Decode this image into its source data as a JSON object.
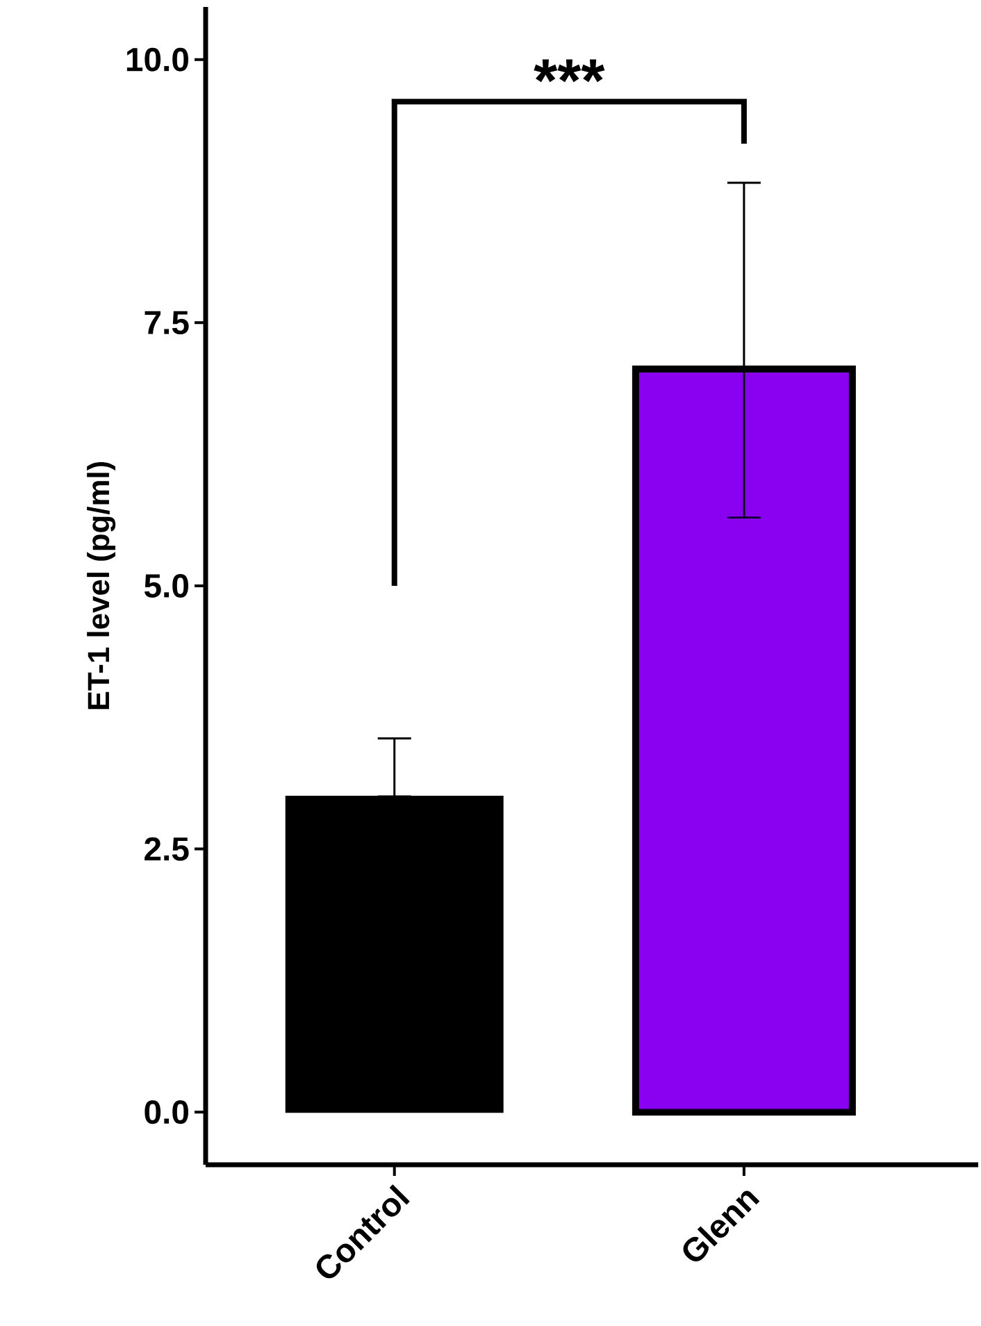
{
  "chart_data": {
    "type": "bar",
    "ylabel": "ET-1 level (pg/ml)",
    "categories": [
      "Control",
      "Glenn"
    ],
    "values": [
      3.0,
      7.06
    ],
    "colors": [
      "#000000",
      "#8a00f0"
    ],
    "errors": [
      [
        3.0,
        3.55
      ],
      [
        5.65,
        8.83
      ]
    ],
    "ylim": [
      -0.5,
      10.5
    ],
    "yticks": [
      {
        "value": 0,
        "label": "0.0"
      },
      {
        "value": 2.5,
        "label": "2.5"
      },
      {
        "value": 5,
        "label": "5.0"
      },
      {
        "value": 7.5,
        "label": "7.5"
      },
      {
        "value": 10,
        "label": "10.0"
      }
    ],
    "annotations": [
      "***"
    ],
    "grid": false
  }
}
